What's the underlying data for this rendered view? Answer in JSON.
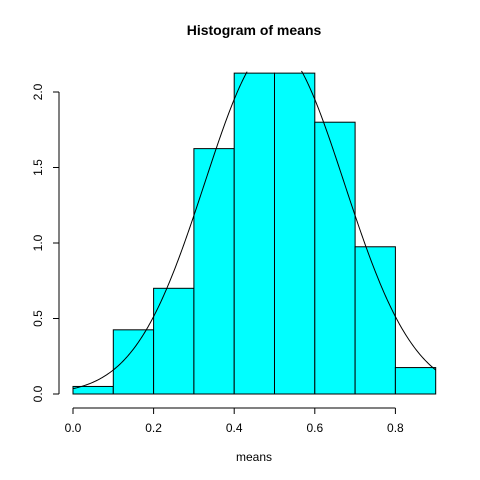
{
  "chart_data": {
    "type": "bar",
    "title": "Histogram of means",
    "xlabel": "means",
    "ylabel": "",
    "bins": [
      {
        "x0": 0.0,
        "x1": 0.1,
        "density": 0.05
      },
      {
        "x0": 0.1,
        "x1": 0.2,
        "density": 0.425
      },
      {
        "x0": 0.2,
        "x1": 0.3,
        "density": 0.7
      },
      {
        "x0": 0.3,
        "x1": 0.4,
        "density": 1.625
      },
      {
        "x0": 0.4,
        "x1": 0.5,
        "density": 2.125
      },
      {
        "x0": 0.5,
        "x1": 0.6,
        "density": 2.125
      },
      {
        "x0": 0.6,
        "x1": 0.7,
        "density": 1.8
      },
      {
        "x0": 0.7,
        "x1": 0.8,
        "density": 0.975
      },
      {
        "x0": 0.8,
        "x1": 0.9,
        "density": 0.175
      }
    ],
    "xticks": [
      "0.0",
      "0.2",
      "0.4",
      "0.6",
      "0.8"
    ],
    "yticks": [
      "0.0",
      "0.5",
      "1.0",
      "1.5",
      "2.0"
    ],
    "xlim": [
      0.0,
      0.9
    ],
    "ylim": [
      0.0,
      2.2
    ],
    "bar_color": "#00ffff",
    "overlay_curve": {
      "type": "normal-density",
      "mean": 0.5,
      "sd": 0.173
    },
    "grid": false
  }
}
